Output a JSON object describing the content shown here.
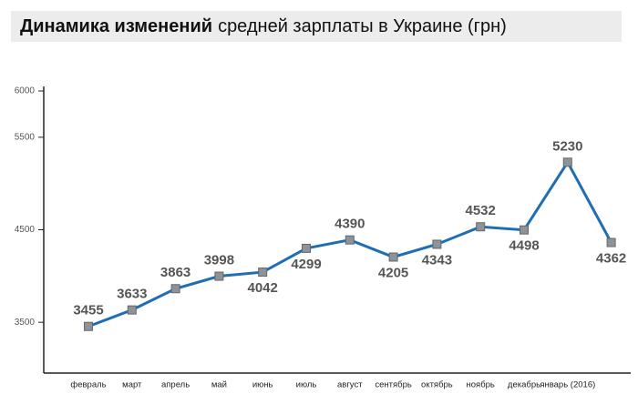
{
  "chart_data": {
    "type": "line",
    "title_bold": "Динамика изменений",
    "title": "средней зарплаты в Украине (грн)",
    "categories": [
      "февраль",
      "март",
      "апрель",
      "май",
      "июнь",
      "июль",
      "август",
      "сентябрь",
      "октябрь",
      "ноябрь",
      "декабрь",
      "январь (2016)",
      null
    ],
    "series": [
      {
        "name": null,
        "color": "#1f6db3",
        "marker_color": "#8c939b",
        "values": [
          3455,
          3633,
          3863,
          3998,
          4042,
          4299,
          4390,
          4205,
          4343,
          4532,
          4498,
          5230,
          4362
        ]
      }
    ],
    "ylim": [
      3000,
      6000
    ],
    "yticks": [
      3500,
      4500,
      5500,
      6000
    ],
    "grid": false
  }
}
